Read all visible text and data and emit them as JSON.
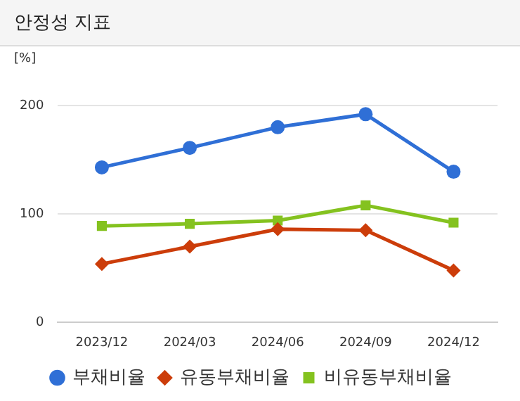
{
  "chart_data": {
    "type": "line",
    "title": "안정성 지표",
    "ylabel": "[%]",
    "categories": [
      "2023/12",
      "2024/03",
      "2024/06",
      "2024/09",
      "2024/12"
    ],
    "series": [
      {
        "name": "부채비율",
        "color": "#2f6fd6",
        "marker": "circle",
        "values": [
          143,
          161,
          180,
          192,
          139
        ]
      },
      {
        "name": "유동부채비율",
        "color": "#cc3d0a",
        "marker": "diamond",
        "values": [
          54,
          70,
          86,
          85,
          48
        ]
      },
      {
        "name": "비유동부채비율",
        "color": "#84c21f",
        "marker": "square",
        "values": [
          89,
          91,
          94,
          108,
          92
        ]
      }
    ],
    "ylim": [
      0,
      200
    ],
    "yticks": [
      0,
      100,
      200
    ],
    "grid": "y",
    "legend": "bottom",
    "line_style": "solid"
  }
}
